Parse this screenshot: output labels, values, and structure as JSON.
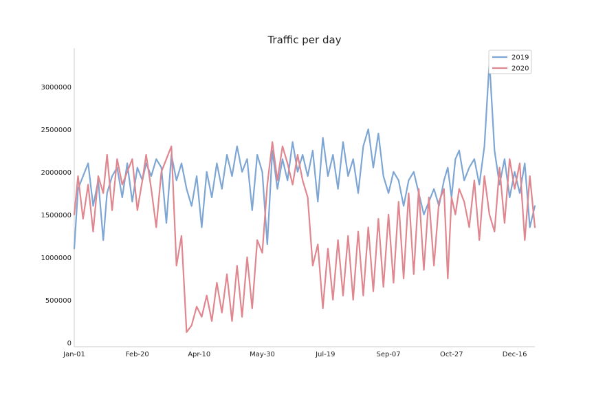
{
  "chart_data": {
    "type": "line",
    "title": "Traffic per day",
    "xlabel": "",
    "ylabel": "",
    "x_tick_labels": [
      "Jan-01",
      "Feb-20",
      "Apr-10",
      "May-30",
      "Jul-19",
      "Sep-07",
      "Oct-27",
      "Dec-16"
    ],
    "x_tick_days": [
      1,
      51,
      100,
      150,
      200,
      250,
      300,
      350
    ],
    "xlim": [
      1,
      366
    ],
    "y_tick_labels": [
      "0",
      "500000",
      "1000000",
      "1500000",
      "2000000",
      "2500000",
      "3000000"
    ],
    "y_ticks": [
      0,
      500000,
      1000000,
      1500000,
      2000000,
      2500000,
      3000000
    ],
    "ylim": [
      -50000,
      3450000
    ],
    "grid": false,
    "legend_position": "top-right",
    "series": [
      {
        "name": "2019",
        "color": "#7ea6d4",
        "x_days": [
          1,
          4,
          8,
          12,
          16,
          20,
          24,
          27,
          31,
          35,
          39,
          43,
          47,
          51,
          55,
          58,
          62,
          66,
          70,
          74,
          78,
          82,
          86,
          90,
          94,
          98,
          102,
          106,
          110,
          114,
          118,
          122,
          126,
          130,
          134,
          138,
          142,
          146,
          150,
          154,
          158,
          162,
          166,
          170,
          174,
          178,
          182,
          186,
          190,
          194,
          198,
          202,
          206,
          210,
          214,
          218,
          222,
          226,
          230,
          234,
          238,
          242,
          246,
          250,
          254,
          258,
          262,
          266,
          270,
          274,
          278,
          282,
          286,
          290,
          294,
          297,
          300,
          303,
          306,
          310,
          314,
          318,
          322,
          326,
          330,
          334,
          338,
          342,
          346,
          350,
          354,
          358,
          362,
          366
        ],
        "values": [
          1100000,
          1800000,
          1950000,
          2100000,
          1600000,
          1900000,
          1200000,
          1750000,
          1950000,
          2050000,
          1700000,
          2100000,
          1650000,
          2050000,
          1900000,
          2100000,
          1950000,
          2150000,
          2050000,
          1400000,
          2200000,
          1900000,
          2100000,
          1800000,
          1600000,
          1950000,
          1350000,
          2000000,
          1700000,
          2100000,
          1800000,
          2200000,
          1950000,
          2300000,
          2000000,
          2150000,
          1550000,
          2200000,
          2000000,
          1150000,
          2250000,
          1800000,
          2150000,
          1900000,
          2350000,
          2000000,
          2200000,
          1950000,
          2250000,
          1650000,
          2400000,
          1950000,
          2200000,
          1800000,
          2350000,
          1950000,
          2150000,
          1750000,
          2300000,
          2500000,
          2050000,
          2450000,
          1950000,
          1750000,
          2000000,
          1900000,
          1600000,
          1900000,
          2000000,
          1750000,
          1500000,
          1650000,
          1800000,
          1600000,
          1900000,
          2050000,
          1700000,
          2150000,
          2250000,
          1900000,
          2050000,
          2150000,
          1850000,
          2300000,
          3300000,
          2250000,
          1850000,
          2150000,
          1700000,
          2000000,
          1750000,
          2100000,
          1350000,
          1600000
        ]
      },
      {
        "name": "2020",
        "color": "#e0868e",
        "x_days": [
          1,
          4,
          8,
          12,
          16,
          20,
          24,
          27,
          31,
          35,
          39,
          43,
          47,
          51,
          55,
          58,
          62,
          66,
          70,
          74,
          78,
          82,
          86,
          90,
          94,
          98,
          102,
          106,
          110,
          114,
          118,
          122,
          126,
          130,
          134,
          138,
          142,
          146,
          150,
          154,
          158,
          162,
          166,
          170,
          174,
          178,
          182,
          186,
          190,
          194,
          198,
          202,
          206,
          210,
          214,
          218,
          222,
          226,
          230,
          234,
          238,
          242,
          246,
          250,
          254,
          258,
          262,
          266,
          270,
          274,
          278,
          282,
          286,
          290,
          294,
          297,
          300,
          303,
          306,
          310,
          314,
          318,
          322,
          326,
          330,
          334,
          338,
          342,
          346,
          350,
          354,
          358,
          362,
          366
        ],
        "values": [
          1500000,
          1950000,
          1450000,
          1850000,
          1300000,
          1950000,
          1750000,
          2200000,
          1550000,
          2150000,
          1850000,
          2000000,
          2150000,
          1550000,
          1900000,
          2200000,
          1800000,
          1350000,
          2000000,
          2150000,
          2300000,
          900000,
          1250000,
          120000,
          200000,
          420000,
          300000,
          550000,
          250000,
          700000,
          350000,
          800000,
          250000,
          900000,
          300000,
          1000000,
          400000,
          1200000,
          1050000,
          1850000,
          2350000,
          1900000,
          2300000,
          2100000,
          1850000,
          2200000,
          1900000,
          1700000,
          900000,
          1150000,
          400000,
          1100000,
          500000,
          1200000,
          550000,
          1250000,
          500000,
          1300000,
          550000,
          1350000,
          600000,
          1450000,
          650000,
          1500000,
          700000,
          1650000,
          750000,
          1750000,
          800000,
          1800000,
          850000,
          1700000,
          900000,
          1650000,
          1800000,
          750000,
          1700000,
          1500000,
          1800000,
          1650000,
          1350000,
          1900000,
          1200000,
          1950000,
          1500000,
          1300000,
          2050000,
          1400000,
          2150000,
          1800000,
          2100000,
          1200000,
          1950000,
          1350000
        ]
      }
    ]
  }
}
